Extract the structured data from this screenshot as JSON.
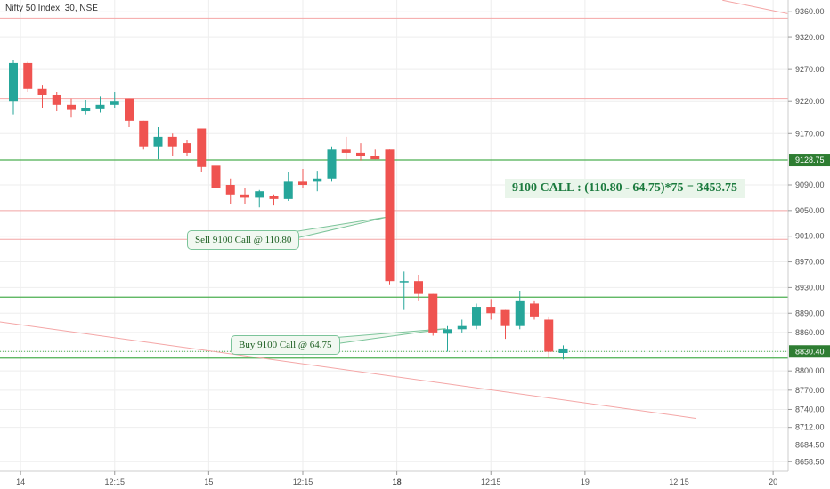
{
  "header": {
    "title": "Nifty 50 Index, 30, NSE"
  },
  "annotations": {
    "sell_note": "Sell 9100 Call @ 110.80",
    "buy_note": "Buy 9100 Call @ 64.75",
    "formula": "9100 CALL : (110.80 - 64.75)*75 = 3453.75"
  },
  "colors": {
    "up": "#26a69a",
    "down": "#ef5350",
    "grid": "#eeeeee",
    "green_line": "#4caf50",
    "red_line": "#f4a6a6",
    "price_tag_bg": "#2e7d32"
  },
  "chart_data": {
    "type": "candlestick",
    "title": "Nifty 50 Index, 30, NSE",
    "ylim": [
      8645,
      9370
    ],
    "y_ticks": [
      9360,
      9320,
      9270,
      9220,
      9170,
      9128.75,
      9090,
      9050,
      9010,
      8970,
      8930,
      8890,
      8860,
      8830.4,
      8800,
      8770,
      8740,
      8712,
      8684.5,
      8658.5
    ],
    "y_tick_labels": [
      "9360.00",
      "9320.00",
      "9270.00",
      "9220.00",
      "9170.00",
      "9128.75",
      "9090.00",
      "9050.00",
      "9010.00",
      "8970.00",
      "8930.00",
      "8890.00",
      "8860.00",
      "8830.40",
      "8800.00",
      "8770.00",
      "8740.00",
      "8712.00",
      "8684.50",
      "8658.50"
    ],
    "highlighted_ticks": [
      "9128.75",
      "8830.40"
    ],
    "x_tick_labels": [
      {
        "i": 0.5,
        "label": "14",
        "bold": false
      },
      {
        "i": 7.0,
        "label": "12:15",
        "bold": false
      },
      {
        "i": 13.5,
        "label": "15",
        "bold": false
      },
      {
        "i": 20.0,
        "label": "12:15",
        "bold": false
      },
      {
        "i": 26.5,
        "label": "18",
        "bold": true
      },
      {
        "i": 33.0,
        "label": "12:15",
        "bold": false
      },
      {
        "i": 39.5,
        "label": "19",
        "bold": false
      },
      {
        "i": 46.0,
        "label": "12:15",
        "bold": false
      },
      {
        "i": 52.5,
        "label": "20",
        "bold": false
      }
    ],
    "candles": [
      {
        "o": 9220,
        "h": 9285,
        "l": 9200,
        "c": 9280
      },
      {
        "o": 9280,
        "h": 9282,
        "l": 9235,
        "c": 9240
      },
      {
        "o": 9240,
        "h": 9245,
        "l": 9210,
        "c": 9230
      },
      {
        "o": 9230,
        "h": 9235,
        "l": 9205,
        "c": 9215
      },
      {
        "o": 9215,
        "h": 9225,
        "l": 9195,
        "c": 9207
      },
      {
        "o": 9205,
        "h": 9222,
        "l": 9200,
        "c": 9210
      },
      {
        "o": 9208,
        "h": 9228,
        "l": 9203,
        "c": 9215
      },
      {
        "o": 9215,
        "h": 9235,
        "l": 9210,
        "c": 9220
      },
      {
        "o": 9225,
        "h": 9225,
        "l": 9180,
        "c": 9190
      },
      {
        "o": 9190,
        "h": 9190,
        "l": 9145,
        "c": 9150
      },
      {
        "o": 9150,
        "h": 9180,
        "l": 9130,
        "c": 9165
      },
      {
        "o": 9165,
        "h": 9170,
        "l": 9135,
        "c": 9150
      },
      {
        "o": 9155,
        "h": 9160,
        "l": 9135,
        "c": 9140
      },
      {
        "o": 9178,
        "h": 9178,
        "l": 9110,
        "c": 9118
      },
      {
        "o": 9120,
        "h": 9120,
        "l": 9070,
        "c": 9085
      },
      {
        "o": 9090,
        "h": 9100,
        "l": 9060,
        "c": 9075
      },
      {
        "o": 9075,
        "h": 9085,
        "l": 9060,
        "c": 9070
      },
      {
        "o": 9070,
        "h": 9082,
        "l": 9055,
        "c": 9080
      },
      {
        "o": 9072,
        "h": 9075,
        "l": 9058,
        "c": 9068
      },
      {
        "o": 9068,
        "h": 9110,
        "l": 9065,
        "c": 9095
      },
      {
        "o": 9095,
        "h": 9115,
        "l": 9085,
        "c": 9090
      },
      {
        "o": 9095,
        "h": 9112,
        "l": 9080,
        "c": 9100
      },
      {
        "o": 9100,
        "h": 9150,
        "l": 9095,
        "c": 9145
      },
      {
        "o": 9145,
        "h": 9165,
        "l": 9130,
        "c": 9140
      },
      {
        "o": 9140,
        "h": 9155,
        "l": 9128,
        "c": 9135
      },
      {
        "o": 9135,
        "h": 9145,
        "l": 9130,
        "c": 9130
      },
      {
        "o": 9145,
        "h": 9145,
        "l": 8935,
        "c": 8940
      },
      {
        "o": 8940,
        "h": 8955,
        "l": 8895,
        "c": 8940
      },
      {
        "o": 8940,
        "h": 8950,
        "l": 8910,
        "c": 8920
      },
      {
        "o": 8920,
        "h": 8920,
        "l": 8855,
        "c": 8860
      },
      {
        "o": 8858,
        "h": 8870,
        "l": 8830,
        "c": 8865
      },
      {
        "o": 8865,
        "h": 8880,
        "l": 8860,
        "c": 8870
      },
      {
        "o": 8870,
        "h": 8905,
        "l": 8865,
        "c": 8900
      },
      {
        "o": 8900,
        "h": 8912,
        "l": 8880,
        "c": 8890
      },
      {
        "o": 8895,
        "h": 8895,
        "l": 8850,
        "c": 8870
      },
      {
        "o": 8870,
        "h": 8925,
        "l": 8865,
        "c": 8910
      },
      {
        "o": 8905,
        "h": 8910,
        "l": 8880,
        "c": 8885
      },
      {
        "o": 8880,
        "h": 8885,
        "l": 8820,
        "c": 8830
      },
      {
        "o": 8828,
        "h": 8840,
        "l": 8818,
        "c": 8835
      }
    ],
    "horizontal_lines": [
      {
        "y": 9350,
        "kind": "red"
      },
      {
        "y": 9225,
        "kind": "red"
      },
      {
        "y": 9128.75,
        "kind": "green"
      },
      {
        "y": 9050,
        "kind": "red"
      },
      {
        "y": 9005,
        "kind": "red"
      },
      {
        "y": 8915,
        "kind": "green"
      },
      {
        "y": 8820,
        "kind": "green"
      }
    ],
    "trend_lines": [
      {
        "from": {
          "i": -1.4,
          "y": 8878
        },
        "to": {
          "i": 47.2,
          "y": 8726
        }
      },
      {
        "from": {
          "i": 49.0,
          "y": 9378
        },
        "to": {
          "i": 53.5,
          "y": 9357
        }
      }
    ],
    "last_price_line": 8830.4
  }
}
